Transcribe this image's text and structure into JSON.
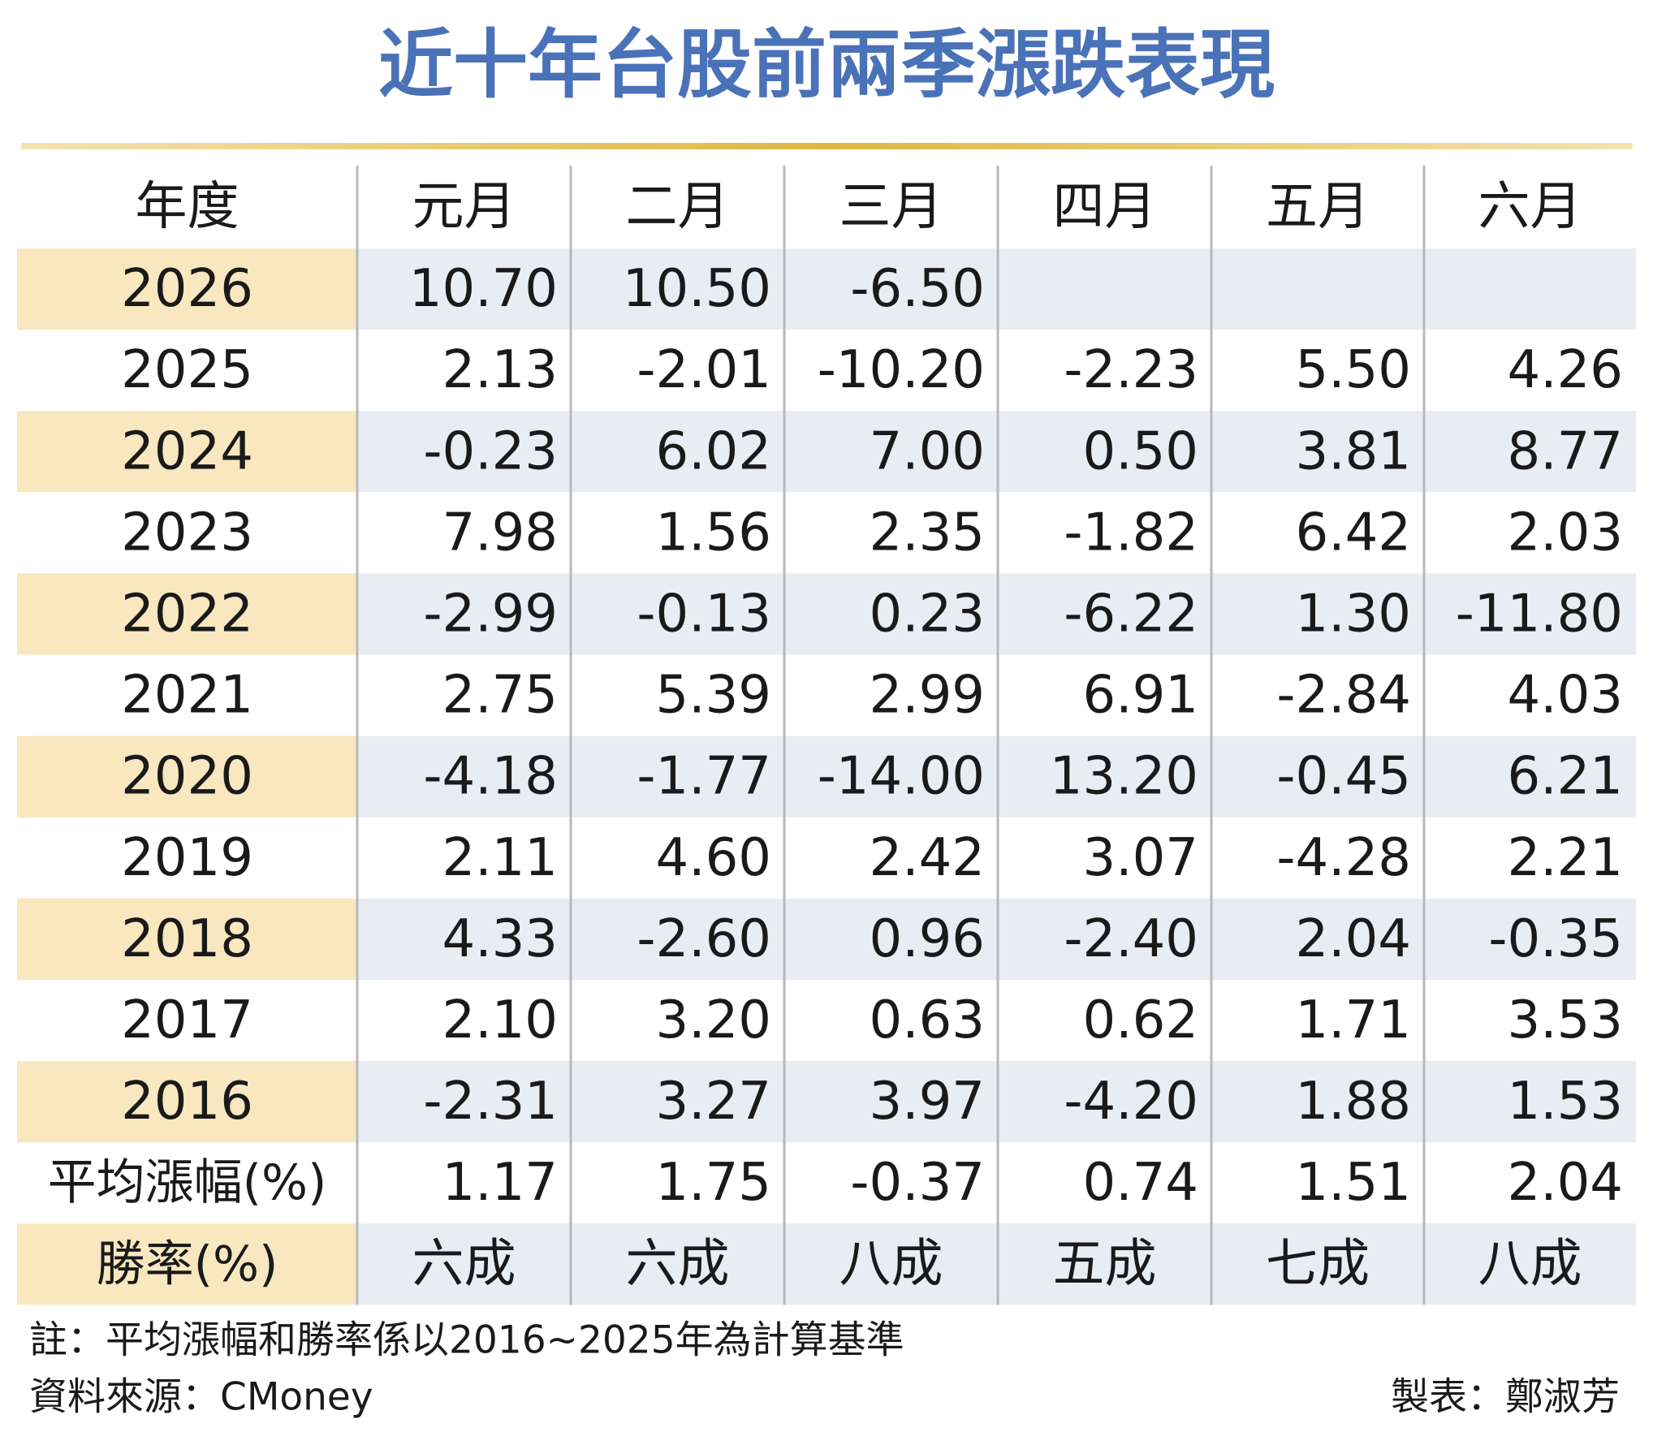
{
  "header": {
    "title": "近十年台股前兩季漲跌表現"
  },
  "table": {
    "columns": [
      "年度",
      "元月",
      "二月",
      "三月",
      "四月",
      "五月",
      "六月"
    ],
    "rows": [
      [
        "2026",
        "10.70",
        "10.50",
        "-6.50"
      ],
      [
        "2025",
        "2.13",
        "-2.01",
        "-10.20",
        "-2.23",
        "5.50",
        "4.26"
      ],
      [
        "2024",
        "-0.23",
        "6.02",
        "7.00",
        "0.50",
        "3.81",
        "8.77"
      ],
      [
        "2023",
        "7.98",
        "1.56",
        "2.35",
        "-1.82",
        "6.42",
        "2.03"
      ],
      [
        "2022",
        "-2.99",
        "-0.13",
        "0.23",
        "-6.22",
        "1.30",
        "-11.80"
      ],
      [
        "2021",
        "2.75",
        "5.39",
        "2.99",
        "6.91",
        "-2.84",
        "4.03"
      ],
      [
        "2020",
        "-4.18",
        "-1.77",
        "-14.00",
        "13.20",
        "-0.45",
        "6.21"
      ],
      [
        "2019",
        "2.11",
        "4.60",
        "2.42",
        "3.07",
        "-4.28",
        "2.21"
      ],
      [
        "2018",
        "4.33",
        "-2.60",
        "0.96",
        "-2.40",
        "2.04",
        "-0.35"
      ],
      [
        "2017",
        "2.10",
        "3.20",
        "0.63",
        "0.62",
        "1.71",
        "3.53"
      ],
      [
        "2016",
        "-2.31",
        "3.27",
        "3.97",
        "-4.20",
        "1.88",
        "1.53"
      ],
      [
        "平均漲幅(%)",
        "1.17",
        "1.75",
        "-0.37",
        "0.74",
        "1.51",
        "2.04"
      ],
      [
        "勝率(%)",
        "六成",
        "六成",
        "八成",
        "五成",
        "七成",
        "八成"
      ]
    ]
  },
  "footer": {
    "note": "註：平均漲幅和勝率係以2016~2025年為計算基準",
    "source": "資料來源：CMoney",
    "credit": "製表：鄭淑芳"
  }
}
